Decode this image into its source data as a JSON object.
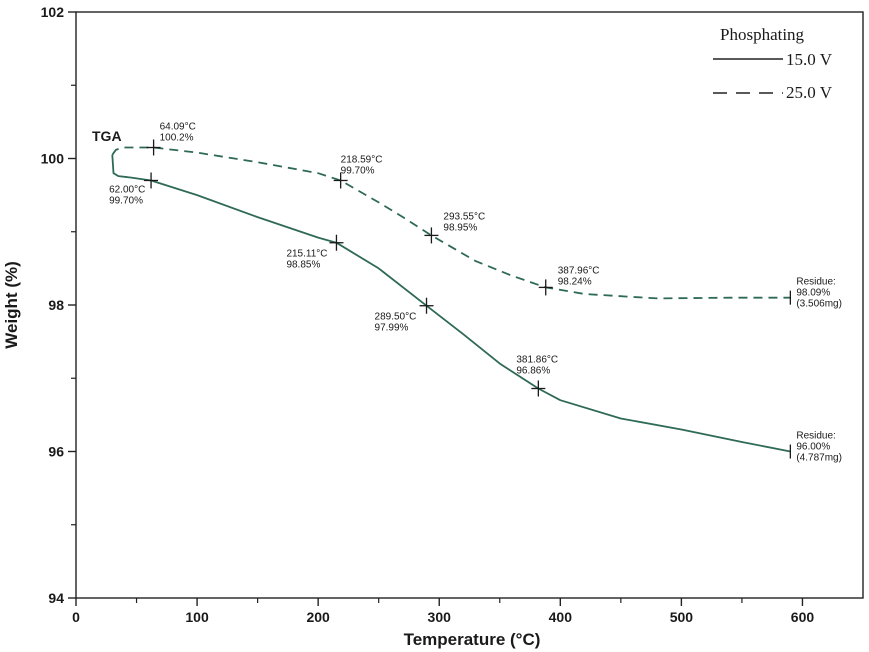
{
  "chart_data": {
    "type": "line",
    "title": "TGA",
    "xlabel": "Temperature (°C)",
    "ylabel": "Weight (%)",
    "xlim": [
      0,
      650
    ],
    "ylim": [
      94,
      102
    ],
    "xticks": [
      0,
      100,
      200,
      300,
      400,
      500,
      600
    ],
    "yticks": [
      94,
      96,
      98,
      100,
      102
    ],
    "legend": {
      "title": "Phosphating",
      "position": "top-right",
      "entries": [
        {
          "label": "15.0 V",
          "style": "solid"
        },
        {
          "label": "25.0 V",
          "style": "dashed"
        }
      ]
    },
    "color": "#2e6a55",
    "series": [
      {
        "name": "15.0 V",
        "style": "solid",
        "points": [
          [
            30,
            100.05
          ],
          [
            31,
            99.8
          ],
          [
            35,
            99.76
          ],
          [
            45,
            99.74
          ],
          [
            62.0,
            99.7
          ],
          [
            100,
            99.5
          ],
          [
            150,
            99.2
          ],
          [
            200,
            98.92
          ],
          [
            215.11,
            98.85
          ],
          [
            250,
            98.5
          ],
          [
            289.5,
            97.99
          ],
          [
            320,
            97.6
          ],
          [
            350,
            97.2
          ],
          [
            381.86,
            96.86
          ],
          [
            400,
            96.7
          ],
          [
            450,
            96.45
          ],
          [
            500,
            96.3
          ],
          [
            550,
            96.13
          ],
          [
            590,
            96.0
          ]
        ],
        "markers": [
          {
            "x": 62.0,
            "y": 99.7,
            "temp": "62.00°C",
            "weight": "99.70%"
          },
          {
            "x": 215.11,
            "y": 98.85,
            "temp": "215.11°C",
            "weight": "98.85%"
          },
          {
            "x": 289.5,
            "y": 97.99,
            "temp": "289.50°C",
            "weight": "97.99%"
          },
          {
            "x": 381.86,
            "y": 96.86,
            "temp": "381.86°C",
            "weight": "96.86%"
          }
        ],
        "residue": {
          "x": 590,
          "y": 96.0,
          "label": "Residue:",
          "value": "96.00%",
          "mass": "(4.787mg)"
        }
      },
      {
        "name": "25.0 V",
        "style": "dashed",
        "points": [
          [
            30,
            100.05
          ],
          [
            33,
            100.12
          ],
          [
            40,
            100.15
          ],
          [
            64.09,
            100.15
          ],
          [
            100,
            100.08
          ],
          [
            150,
            99.95
          ],
          [
            200,
            99.8
          ],
          [
            218.59,
            99.7
          ],
          [
            250,
            99.4
          ],
          [
            270,
            99.2
          ],
          [
            293.55,
            98.95
          ],
          [
            330,
            98.6
          ],
          [
            360,
            98.4
          ],
          [
            387.96,
            98.24
          ],
          [
            420,
            98.15
          ],
          [
            480,
            98.09
          ],
          [
            540,
            98.1
          ],
          [
            590,
            98.1
          ]
        ],
        "markers": [
          {
            "x": 64.09,
            "y": 100.15,
            "temp": "64.09°C",
            "weight": "100.2%"
          },
          {
            "x": 218.59,
            "y": 99.7,
            "temp": "218.59°C",
            "weight": "99.70%"
          },
          {
            "x": 293.55,
            "y": 98.95,
            "temp": "293.55°C",
            "weight": "98.95%"
          },
          {
            "x": 387.96,
            "y": 98.24,
            "temp": "387.96°C",
            "weight": "98.24%"
          }
        ],
        "residue": {
          "x": 590,
          "y": 98.1,
          "label": "Residue:",
          "value": "98.09%",
          "mass": "(3.506mg)"
        }
      }
    ]
  }
}
